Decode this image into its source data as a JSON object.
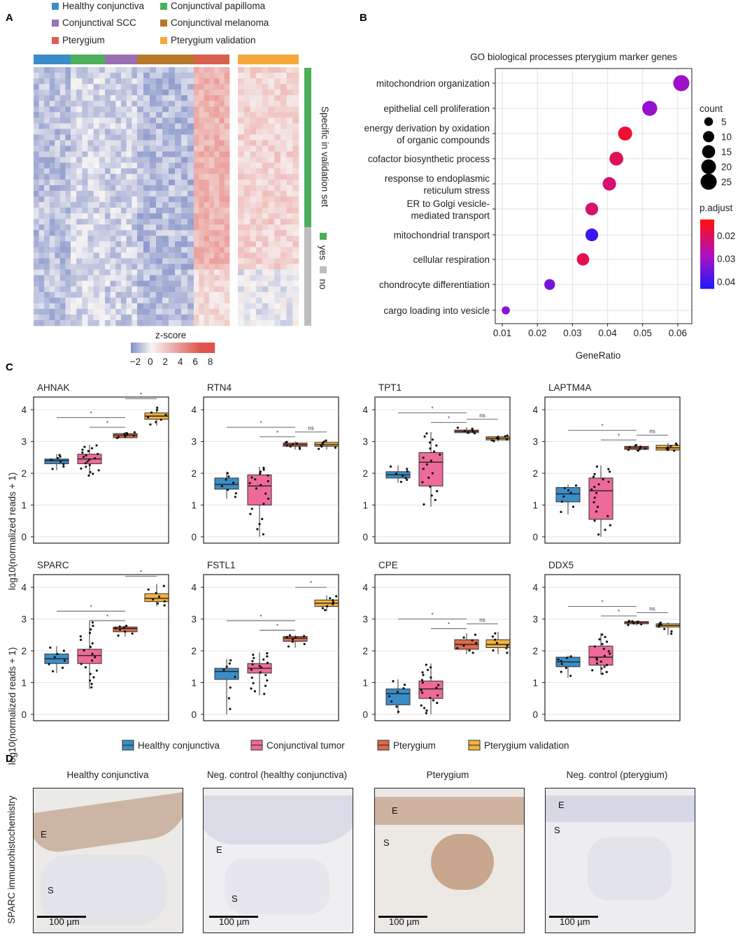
{
  "panels": {
    "a": "A",
    "b": "B",
    "c": "C",
    "d": "D"
  },
  "heatmap": {
    "legend": [
      {
        "label": "Healthy conjunctiva",
        "color": "#3a8dc9"
      },
      {
        "label": "Conjunctival papilloma",
        "color": "#4daf5b"
      },
      {
        "label": "Conjunctival SCC",
        "color": "#9b6fb3"
      },
      {
        "label": "Conjunctival melanoma",
        "color": "#b8782a"
      },
      {
        "label": "Pterygium",
        "color": "#d9604c"
      },
      {
        "label": "Pterygium validation",
        "color": "#f5a83a"
      }
    ],
    "colorbar_title": "z-score",
    "colorbar_ticks": [
      "−2",
      "0",
      "2",
      "4",
      "6",
      "8"
    ],
    "side_title": "Specific in validation set",
    "side_legend": [
      {
        "label": "yes",
        "color": "#4daf5b"
      },
      {
        "label": "no",
        "color": "#bdbdbd"
      }
    ]
  },
  "chart_data": [
    {
      "type": "scatter",
      "title": "GO biological processes pterygium marker genes",
      "xlabel": "GeneRatio",
      "ylabel": "",
      "xlim": [
        0.008,
        0.064
      ],
      "xticks": [
        "0.01",
        "0.02",
        "0.03",
        "0.04",
        "0.05",
        "0.06"
      ],
      "xtick_values": [
        0.01,
        0.02,
        0.03,
        0.04,
        0.05,
        0.06
      ],
      "terms": [
        {
          "name": [
            "mitochondrion organization"
          ],
          "gene_ratio": 0.061,
          "count": 25,
          "p_adjust": 0.03
        },
        {
          "name": [
            "epithelial cell proliferation"
          ],
          "gene_ratio": 0.052,
          "count": 21,
          "p_adjust": 0.031
        },
        {
          "name": [
            "energy derivation by oxidation",
            "of organic compounds"
          ],
          "gene_ratio": 0.045,
          "count": 18,
          "p_adjust": 0.016
        },
        {
          "name": [
            "cofactor biosynthetic process"
          ],
          "gene_ratio": 0.0425,
          "count": 17,
          "p_adjust": 0.019
        },
        {
          "name": [
            "response to endoplasmic",
            "reticulum stress"
          ],
          "gene_ratio": 0.0405,
          "count": 16,
          "p_adjust": 0.021
        },
        {
          "name": [
            "ER to Golgi vesicle-",
            "mediated transport"
          ],
          "gene_ratio": 0.0355,
          "count": 14,
          "p_adjust": 0.021
        },
        {
          "name": [
            "mitochondrial transport"
          ],
          "gene_ratio": 0.0355,
          "count": 14,
          "p_adjust": 0.04
        },
        {
          "name": [
            "cellular respiration"
          ],
          "gene_ratio": 0.033,
          "count": 13,
          "p_adjust": 0.018
        },
        {
          "name": [
            "chondrocyte differentiation"
          ],
          "gene_ratio": 0.0235,
          "count": 9,
          "p_adjust": 0.034
        },
        {
          "name": [
            "cargo loading into vesicle"
          ],
          "gene_ratio": 0.011,
          "count": 4,
          "p_adjust": 0.032
        }
      ],
      "size_legend_title": "count",
      "size_legend": [
        "5",
        "10",
        "15",
        "20",
        "25"
      ],
      "size_legend_values": [
        5,
        10,
        15,
        20,
        25
      ],
      "color_legend_title": "p.adjust",
      "color_legend_ticks": [
        "0.02",
        "0.03",
        "0.04"
      ],
      "color_legend_values": [
        0.02,
        0.03,
        0.04
      ],
      "color_range": [
        0.013,
        0.043
      ]
    },
    {
      "type": "box",
      "ylabel": "log10(normalized reads + 1)",
      "ylim": [
        -0.2,
        4.4
      ],
      "yticks": [
        "0",
        "1",
        "2",
        "3",
        "4"
      ],
      "ytick_values": [
        0,
        1,
        2,
        3,
        4
      ],
      "groups": [
        {
          "label": "Healthy conjunctiva",
          "color": "#3a8dc9"
        },
        {
          "label": "Conjunctival tumor",
          "color": "#ee6a9a"
        },
        {
          "label": "Pterygium",
          "color": "#dd6a4a"
        },
        {
          "label": "Pterygium validation",
          "color": "#f4b13f"
        }
      ],
      "genes": [
        {
          "name": "AHNAK",
          "stats": [
            [
              2.1,
              2.3,
              2.4,
              2.45,
              2.6
            ],
            [
              1.9,
              2.3,
              2.45,
              2.6,
              2.9
            ],
            [
              3.1,
              3.12,
              3.2,
              3.25,
              3.3
            ],
            [
              3.5,
              3.7,
              3.8,
              3.9,
              4.1
            ]
          ],
          "comparisons": [
            {
              "from": 0,
              "to": 2,
              "label": "*"
            },
            {
              "from": 1,
              "to": 2,
              "label": "*"
            },
            {
              "from": 2,
              "to": 3,
              "label": "*"
            }
          ]
        },
        {
          "name": "RTN4",
          "stats": [
            [
              1.2,
              1.5,
              1.65,
              1.85,
              2.05
            ],
            [
              0.0,
              1.0,
              1.6,
              1.95,
              2.2
            ],
            [
              2.75,
              2.85,
              2.9,
              2.95,
              3.0
            ],
            [
              2.75,
              2.85,
              2.9,
              2.97,
              3.05
            ]
          ],
          "comparisons": [
            {
              "from": 0,
              "to": 2,
              "label": "*"
            },
            {
              "from": 1,
              "to": 2,
              "label": "*"
            },
            {
              "from": 2,
              "to": 3,
              "label": "ns"
            }
          ]
        },
        {
          "name": "TPT1",
          "stats": [
            [
              1.7,
              1.85,
              1.95,
              2.05,
              2.25
            ],
            [
              0.95,
              1.6,
              2.35,
              2.65,
              3.3
            ],
            [
              3.25,
              3.28,
              3.32,
              3.36,
              3.45
            ],
            [
              3.0,
              3.05,
              3.1,
              3.15,
              3.2
            ]
          ],
          "comparisons": [
            {
              "from": 0,
              "to": 2,
              "label": "*"
            },
            {
              "from": 1,
              "to": 2,
              "label": "*"
            },
            {
              "from": 2,
              "to": 3,
              "label": "ns"
            }
          ]
        },
        {
          "name": "LAPTM4A",
          "stats": [
            [
              0.7,
              1.1,
              1.35,
              1.55,
              1.65
            ],
            [
              0.0,
              0.55,
              1.45,
              1.85,
              2.25
            ],
            [
              2.7,
              2.75,
              2.8,
              2.85,
              2.9
            ],
            [
              2.7,
              2.73,
              2.8,
              2.88,
              2.95
            ]
          ],
          "comparisons": [
            {
              "from": 0,
              "to": 2,
              "label": "*"
            },
            {
              "from": 1,
              "to": 2,
              "label": "*"
            },
            {
              "from": 2,
              "to": 3,
              "label": "ns"
            }
          ]
        },
        {
          "name": "SPARC",
          "stats": [
            [
              1.3,
              1.6,
              1.75,
              1.9,
              2.15
            ],
            [
              0.8,
              1.6,
              1.85,
              2.05,
              2.95
            ],
            [
              2.45,
              2.6,
              2.7,
              2.75,
              2.8
            ],
            [
              3.4,
              3.55,
              3.65,
              3.8,
              4.1
            ]
          ],
          "comparisons": [
            {
              "from": 0,
              "to": 2,
              "label": "*"
            },
            {
              "from": 1,
              "to": 2,
              "label": "*"
            },
            {
              "from": 2,
              "to": 3,
              "label": "*"
            }
          ]
        },
        {
          "name": "FSTL1",
          "stats": [
            [
              0.0,
              1.1,
              1.35,
              1.45,
              1.75
            ],
            [
              0.6,
              1.3,
              1.45,
              1.6,
              1.95
            ],
            [
              2.1,
              2.3,
              2.4,
              2.45,
              2.5
            ],
            [
              3.25,
              3.4,
              3.5,
              3.6,
              3.75
            ]
          ],
          "comparisons": [
            {
              "from": 0,
              "to": 2,
              "label": "*"
            },
            {
              "from": 1,
              "to": 2,
              "label": "*"
            },
            {
              "from": 2,
              "to": 3,
              "label": "*"
            }
          ]
        },
        {
          "name": "CPE",
          "stats": [
            [
              0.0,
              0.3,
              0.65,
              0.8,
              1.1
            ],
            [
              0.0,
              0.5,
              0.8,
              1.05,
              1.6
            ],
            [
              1.9,
              2.05,
              2.2,
              2.35,
              2.55
            ],
            [
              1.9,
              2.1,
              2.2,
              2.35,
              2.6
            ]
          ],
          "comparisons": [
            {
              "from": 0,
              "to": 2,
              "label": "*"
            },
            {
              "from": 1,
              "to": 2,
              "label": "*"
            },
            {
              "from": 2,
              "to": 3,
              "label": "ns"
            }
          ]
        },
        {
          "name": "DDX5",
          "stats": [
            [
              1.15,
              1.5,
              1.65,
              1.8,
              1.85
            ],
            [
              1.25,
              1.55,
              1.8,
              2.15,
              2.55
            ],
            [
              2.8,
              2.85,
              2.9,
              2.92,
              2.95
            ],
            [
              2.5,
              2.75,
              2.8,
              2.85,
              2.9
            ]
          ],
          "comparisons": [
            {
              "from": 0,
              "to": 2,
              "label": "*"
            },
            {
              "from": 1,
              "to": 2,
              "label": "*"
            },
            {
              "from": 2,
              "to": 3,
              "label": "ns"
            }
          ]
        }
      ]
    }
  ],
  "ihc": {
    "side_label": "SPARC immunohistochemistry",
    "images": [
      {
        "title": "Healthy conjunctiva",
        "marks": [
          "E",
          "S"
        ],
        "scale": "100 µm"
      },
      {
        "title": "Neg. control (healthy conjunctiva)",
        "marks": [
          "E",
          "S"
        ],
        "scale": "100 µm"
      },
      {
        "title": "Pterygium",
        "marks": [
          "E",
          "S"
        ],
        "scale": "100 µm"
      },
      {
        "title": "Neg. control (pterygium)",
        "marks": [
          "E",
          "S"
        ],
        "scale": "100 µm"
      }
    ]
  }
}
